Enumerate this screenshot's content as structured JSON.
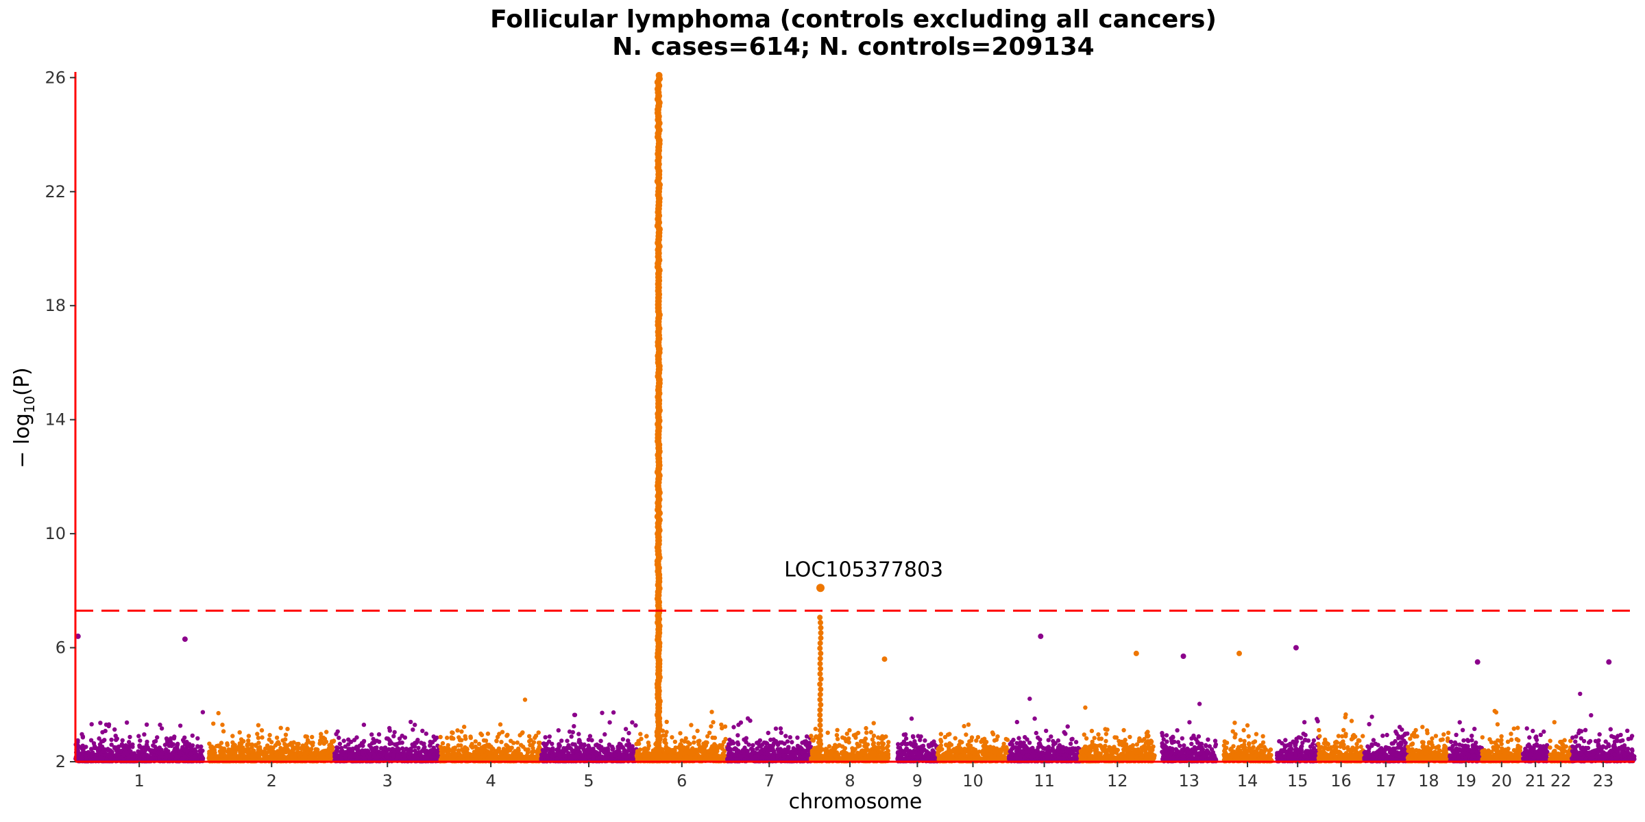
{
  "chart_data": {
    "type": "scatter",
    "title": "Follicular lymphoma (controls excluding all cancers)",
    "subtitle": "N. cases=614; N. controls=209134",
    "xlabel": "chromosome",
    "ylabel_prefix": "− log",
    "ylabel_sub": "10",
    "ylabel_suffix": "(P)",
    "ylim": [
      2,
      26.2
    ],
    "yticks": [
      2,
      6,
      10,
      14,
      18,
      22,
      26
    ],
    "significance_line": 7.3,
    "colors": {
      "odd": "#8B008B",
      "even": "#EE7600",
      "threshold": "#FF0000",
      "axis": "#FF0000"
    },
    "chromosomes": [
      {
        "label": "1",
        "start": 0.0,
        "end": 247.0
      },
      {
        "label": "2",
        "start": 258.0,
        "end": 501.0
      },
      {
        "label": "3",
        "start": 501.0,
        "end": 706.0
      },
      {
        "label": "4",
        "start": 706.0,
        "end": 901.0
      },
      {
        "label": "5",
        "start": 901.0,
        "end": 1085.0
      },
      {
        "label": "6",
        "start": 1085.0,
        "end": 1261.0
      },
      {
        "label": "7",
        "start": 1261.0,
        "end": 1423.0
      },
      {
        "label": "8",
        "start": 1423.0,
        "end": 1573.0
      },
      {
        "label": "9",
        "start": 1590.0,
        "end": 1667.0
      },
      {
        "label": "10",
        "start": 1667.0,
        "end": 1805.0
      },
      {
        "label": "11",
        "start": 1805.0,
        "end": 1943.0
      },
      {
        "label": "12",
        "start": 1943.0,
        "end": 2088.0
      },
      {
        "label": "13",
        "start": 2101.0,
        "end": 2207.0
      },
      {
        "label": "14",
        "start": 2220.0,
        "end": 2314.0
      },
      {
        "label": "15",
        "start": 2324.0,
        "end": 2404.0
      },
      {
        "label": "16",
        "start": 2404.0,
        "end": 2492.0
      },
      {
        "label": "17",
        "start": 2492.0,
        "end": 2577.0
      },
      {
        "label": "18",
        "start": 2577.0,
        "end": 2658.0
      },
      {
        "label": "19",
        "start": 2658.0,
        "end": 2721.0
      },
      {
        "label": "20",
        "start": 2721.0,
        "end": 2796.0
      },
      {
        "label": "21",
        "start": 2800.0,
        "end": 2848.0
      },
      {
        "label": "22",
        "start": 2852.0,
        "end": 2894.0
      },
      {
        "label": "23",
        "start": 2894.0,
        "end": 3016.0
      }
    ],
    "notable_points": [
      {
        "x": 1128,
        "y": 26.1,
        "note": "chr6 peak"
      },
      {
        "x": 1441,
        "y": 8.1,
        "label": "LOC105377803"
      },
      {
        "x": 5,
        "y": 6.4
      },
      {
        "x": 212,
        "y": 6.3
      },
      {
        "x": 1867,
        "y": 6.4
      },
      {
        "x": 2361,
        "y": 6.0
      },
      {
        "x": 2052,
        "y": 5.8
      },
      {
        "x": 2143,
        "y": 5.7
      },
      {
        "x": 1565,
        "y": 5.6
      },
      {
        "x": 2251,
        "y": 5.8
      },
      {
        "x": 2712,
        "y": 5.5
      },
      {
        "x": 2966,
        "y": 5.5
      }
    ],
    "annotations": [
      {
        "text": "LOC105377803",
        "x": 1371,
        "y": 8.5
      }
    ]
  }
}
